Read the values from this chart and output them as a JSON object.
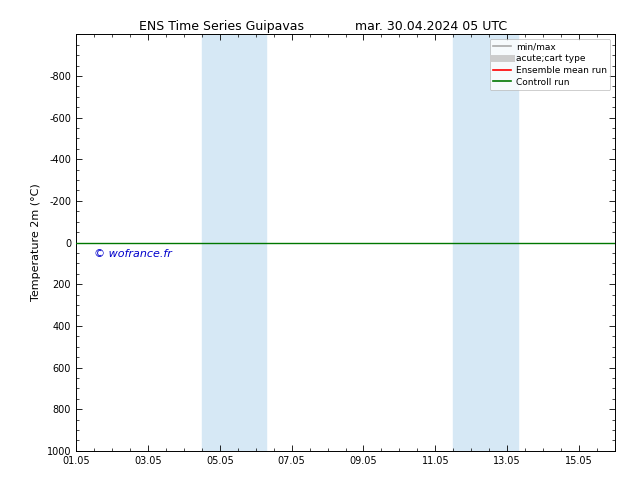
{
  "title": "ENS Time Series Guipavas",
  "title2": "mar. 30.04.2024 05 UTC",
  "ylabel": "Temperature 2m (°C)",
  "ylim_top": -1000,
  "ylim_bottom": 1000,
  "yticks": [
    -800,
    -600,
    -400,
    -200,
    0,
    200,
    400,
    600,
    800,
    1000
  ],
  "xtick_labels": [
    "01.05",
    "03.05",
    "05.05",
    "07.05",
    "09.05",
    "11.05",
    "13.05",
    "15.05"
  ],
  "xtick_positions": [
    0,
    2,
    4,
    6,
    8,
    10,
    12,
    14
  ],
  "xlim": [
    0,
    15
  ],
  "shaded_bands": [
    {
      "xmin": 3.5,
      "xmax": 5.3
    },
    {
      "xmin": 10.5,
      "xmax": 12.3
    }
  ],
  "shaded_color": "#d6e8f5",
  "horizontal_line_y": 0,
  "line_color_green": "#007700",
  "line_color_red": "#FF0000",
  "watermark": "© wofrance.fr",
  "watermark_color": "#0000CC",
  "legend_items": [
    {
      "label": "min/max",
      "color": "#aaaaaa",
      "lw": 1.2
    },
    {
      "label": "acute;cart type",
      "color": "#cccccc",
      "lw": 5
    },
    {
      "label": "Ensemble mean run",
      "color": "#FF0000",
      "lw": 1.2
    },
    {
      "label": "Controll run",
      "color": "#007700",
      "lw": 1.2
    }
  ],
  "bg_color": "#ffffff",
  "fig_width": 6.34,
  "fig_height": 4.9,
  "dpi": 100
}
